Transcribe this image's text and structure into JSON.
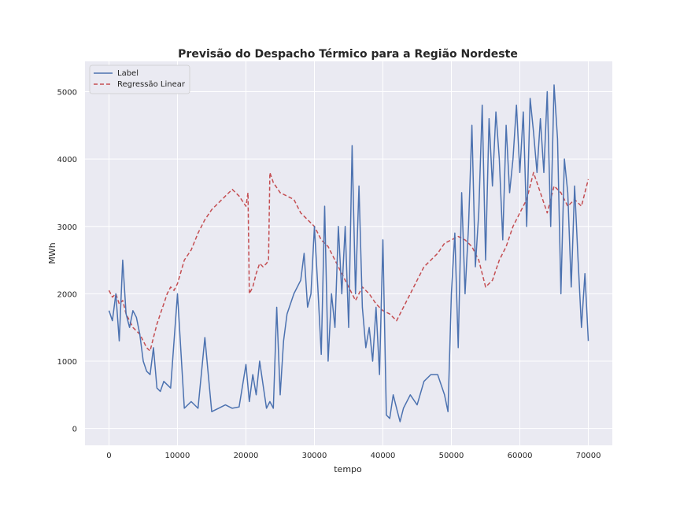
{
  "chart_data": {
    "type": "line",
    "title": "Previsão do Despacho Térmico para a Região Nordeste",
    "xlabel": "tempo",
    "ylabel": "MWh",
    "xlim": [
      -3500,
      73500
    ],
    "ylim": [
      -250,
      5450
    ],
    "xticks": [
      0,
      10000,
      20000,
      30000,
      40000,
      50000,
      60000,
      70000
    ],
    "yticks": [
      0,
      1000,
      2000,
      3000,
      4000,
      5000
    ],
    "grid": true,
    "legend_position": "top-left",
    "background_color": "#eaeaf2",
    "series": [
      {
        "name": "Label",
        "color": "#4c72b0",
        "style": "solid",
        "x": [
          0,
          500,
          1000,
          1500,
          2000,
          2500,
          3000,
          3500,
          4000,
          4500,
          5000,
          5500,
          6000,
          6500,
          7000,
          7500,
          8000,
          9000,
          10000,
          11000,
          12000,
          13000,
          14000,
          15000,
          16000,
          17000,
          18000,
          19000,
          20000,
          20500,
          21000,
          21500,
          22000,
          22500,
          23000,
          23500,
          24000,
          24500,
          25000,
          25500,
          26000,
          27000,
          28000,
          28500,
          29000,
          29500,
          30000,
          30500,
          31000,
          31500,
          32000,
          32500,
          33000,
          33500,
          34000,
          34500,
          35000,
          35500,
          36000,
          36500,
          37000,
          37500,
          38000,
          38500,
          39000,
          39500,
          40000,
          40500,
          41000,
          41500,
          42000,
          42500,
          43000,
          44000,
          45000,
          46000,
          47000,
          48000,
          49000,
          49500,
          50000,
          50500,
          51000,
          51500,
          52000,
          52500,
          53000,
          53500,
          54000,
          54500,
          55000,
          55500,
          56000,
          56500,
          57000,
          57500,
          58000,
          58500,
          59000,
          59500,
          60000,
          60500,
          61000,
          61500,
          62000,
          62500,
          63000,
          63500,
          64000,
          64500,
          65000,
          65500,
          66000,
          66500,
          67000,
          67500,
          68000,
          68500,
          69000,
          69500,
          70000
        ],
        "y": [
          1750,
          1600,
          2000,
          1300,
          2500,
          1700,
          1500,
          1750,
          1650,
          1400,
          1000,
          850,
          800,
          1200,
          600,
          550,
          700,
          600,
          2000,
          300,
          400,
          300,
          1350,
          250,
          300,
          350,
          300,
          320,
          950,
          400,
          800,
          500,
          1000,
          650,
          300,
          400,
          300,
          1800,
          500,
          1300,
          1700,
          2000,
          2200,
          2600,
          1800,
          2000,
          3000,
          2100,
          1100,
          3300,
          1000,
          2000,
          1500,
          3000,
          2000,
          3000,
          1500,
          4200,
          2000,
          3600,
          1800,
          1200,
          1500,
          1000,
          1800,
          800,
          2800,
          200,
          150,
          500,
          300,
          100,
          300,
          500,
          350,
          700,
          800,
          800,
          500,
          250,
          2000,
          2900,
          1200,
          3500,
          2000,
          3000,
          4500,
          2400,
          3200,
          4800,
          2500,
          4600,
          3600,
          4700,
          4000,
          2800,
          4500,
          3500,
          4000,
          4800,
          3800,
          4700,
          3000,
          4900,
          4400,
          3800,
          4600,
          3800,
          5000,
          3000,
          5100,
          4300,
          2000,
          4000,
          3500,
          2100,
          3600,
          2500,
          1500,
          2300,
          1300
        ]
      },
      {
        "name": "Regressão Linear",
        "color": "#c44e52",
        "style": "dashed",
        "x": [
          0,
          500,
          1000,
          1500,
          2000,
          2500,
          3000,
          3500,
          4000,
          4500,
          5000,
          5500,
          6000,
          6500,
          7000,
          7500,
          8000,
          8500,
          9000,
          9500,
          10000,
          11000,
          12000,
          13000,
          14000,
          15000,
          16000,
          17000,
          18000,
          19000,
          20000,
          20300,
          20500,
          21000,
          21500,
          22000,
          22500,
          23000,
          23300,
          23500,
          24000,
          25000,
          26000,
          27000,
          28000,
          29000,
          30000,
          31000,
          32000,
          33000,
          34000,
          35000,
          36000,
          37000,
          38000,
          39000,
          40000,
          41000,
          42000,
          43000,
          44000,
          45000,
          46000,
          47000,
          48000,
          49000,
          50000,
          51000,
          52000,
          53000,
          54000,
          55000,
          56000,
          57000,
          58000,
          59000,
          60000,
          61000,
          62000,
          63000,
          64000,
          65000,
          66000,
          67000,
          68000,
          69000,
          70000
        ],
        "y": [
          2050,
          1950,
          2000,
          1850,
          1900,
          1700,
          1600,
          1500,
          1450,
          1400,
          1300,
          1200,
          1150,
          1350,
          1550,
          1700,
          1850,
          2000,
          2100,
          2050,
          2150,
          2500,
          2650,
          2900,
          3100,
          3250,
          3350,
          3450,
          3550,
          3450,
          3300,
          3500,
          2000,
          2100,
          2300,
          2450,
          2400,
          2450,
          2500,
          3800,
          3650,
          3500,
          3450,
          3400,
          3200,
          3100,
          3000,
          2800,
          2700,
          2500,
          2300,
          2100,
          1900,
          2100,
          2000,
          1850,
          1750,
          1700,
          1600,
          1800,
          2000,
          2200,
          2400,
          2500,
          2600,
          2750,
          2800,
          2850,
          2800,
          2700,
          2500,
          2100,
          2200,
          2500,
          2700,
          3000,
          3200,
          3400,
          3800,
          3500,
          3200,
          3600,
          3500,
          3300,
          3400,
          3300,
          3700
        ]
      }
    ]
  }
}
